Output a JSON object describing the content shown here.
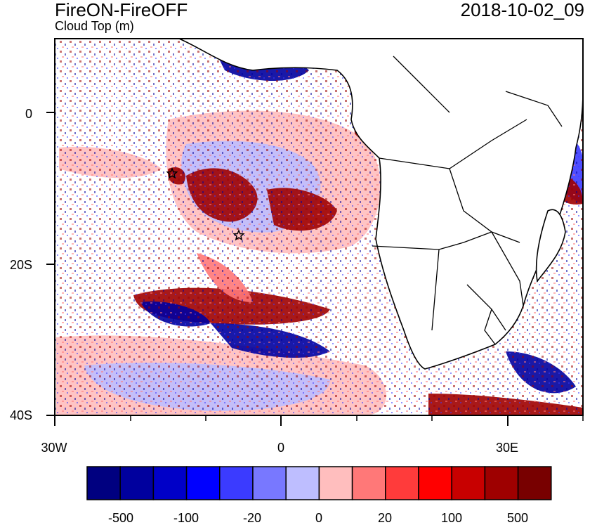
{
  "figure": {
    "title": "FireON-FireOFF",
    "subtitle": "Cloud Top (m)",
    "timestamp": "2018-10-02_09"
  },
  "axes": {
    "lat_ticks": [
      "0",
      "20S",
      "40S"
    ],
    "lon_ticks": [
      "30W",
      "0",
      "30E"
    ]
  },
  "colorbar": {
    "colors": [
      "#000080",
      "#00009e",
      "#0000c8",
      "#0000ff",
      "#3b3bff",
      "#7878ff",
      "#bebeff",
      "#ffbebe",
      "#ff7878",
      "#ff3b3b",
      "#ff0000",
      "#c80000",
      "#9e0000",
      "#780000"
    ],
    "labels": [
      "-500",
      "-100",
      "-20",
      "0",
      "20",
      "100",
      "500"
    ]
  },
  "map": {
    "colors": {
      "land": "#ffffff",
      "coast": "#000000",
      "neg_strong": "#00009e",
      "neg_mid": "#3b3bff",
      "neg_light": "#bebeff",
      "pos_light": "#ffbebe",
      "pos_mid": "#ff7878",
      "pos_strong": "#9e0000"
    }
  }
}
